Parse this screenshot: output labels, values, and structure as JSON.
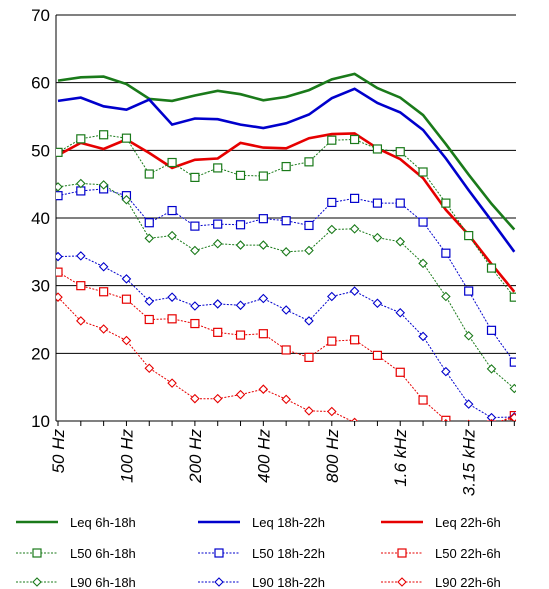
{
  "chart_data": {
    "type": "line",
    "title": "",
    "xlabel": "",
    "ylabel": "",
    "ylim": [
      10,
      70
    ],
    "yticks": [
      10,
      20,
      30,
      40,
      50,
      60,
      70
    ],
    "grid": "horizontal",
    "legend_position": "bottom",
    "x_tick_labels": [
      {
        "i": 0,
        "label": "50 Hz"
      },
      {
        "i": 3,
        "label": "100 Hz"
      },
      {
        "i": 6,
        "label": "200 Hz"
      },
      {
        "i": 9,
        "label": "400 Hz"
      },
      {
        "i": 12,
        "label": "800 Hz"
      },
      {
        "i": 15,
        "label": "1.6 kHz"
      },
      {
        "i": 18,
        "label": "3.15 kHz"
      }
    ],
    "x_count": 21,
    "series": [
      {
        "name": "Leq 6h-18h",
        "color": "#1a7a1a",
        "style": "solid",
        "marker": "none",
        "values": [
          60.3,
          60.8,
          60.9,
          59.8,
          57.6,
          57.3,
          58.1,
          58.8,
          58.3,
          57.4,
          57.9,
          58.9,
          60.5,
          61.3,
          59.2,
          57.8,
          55.2,
          50.9,
          46.4,
          42.1,
          38.3
        ]
      },
      {
        "name": "Leq 18h-22h",
        "color": "#0000cc",
        "style": "solid",
        "marker": "none",
        "values": [
          57.3,
          57.8,
          56.5,
          56.0,
          57.5,
          53.8,
          54.7,
          54.6,
          53.8,
          53.3,
          54.0,
          55.3,
          57.7,
          59.1,
          57.0,
          55.6,
          53.0,
          48.8,
          44.1,
          39.6,
          35.0
        ]
      },
      {
        "name": "Leq 22h-6h",
        "color": "#e60000",
        "style": "solid",
        "marker": "none",
        "values": [
          49.3,
          51.1,
          50.2,
          51.6,
          49.6,
          47.4,
          48.6,
          48.8,
          51.1,
          50.4,
          50.3,
          51.8,
          52.4,
          52.5,
          50.3,
          48.7,
          45.9,
          41.2,
          37.5,
          33.2,
          29.1
        ]
      },
      {
        "name": "L50 6h-18h",
        "color": "#1a7a1a",
        "style": "dotted",
        "marker": "square",
        "values": [
          49.7,
          51.7,
          52.3,
          51.8,
          46.5,
          48.2,
          46.0,
          47.4,
          46.3,
          46.2,
          47.6,
          48.3,
          51.5,
          51.6,
          50.2,
          49.8,
          46.8,
          42.2,
          37.4,
          32.6,
          28.3
        ]
      },
      {
        "name": "L50 18h-22h",
        "color": "#0000cc",
        "style": "dotted",
        "marker": "square",
        "values": [
          43.3,
          44.0,
          44.3,
          43.3,
          39.3,
          41.1,
          38.8,
          39.1,
          39.0,
          39.9,
          39.6,
          38.9,
          42.3,
          42.9,
          42.2,
          42.2,
          39.4,
          34.8,
          29.2,
          23.4,
          18.7
        ]
      },
      {
        "name": "L50 22h-6h",
        "color": "#e60000",
        "style": "dotted",
        "marker": "square",
        "values": [
          32.0,
          30.0,
          29.1,
          28.0,
          25.0,
          25.1,
          24.4,
          23.1,
          22.7,
          22.9,
          20.5,
          19.4,
          21.8,
          22.0,
          19.7,
          17.2,
          13.1,
          10.1,
          9.0,
          9.4,
          10.8
        ]
      },
      {
        "name": "L90 6h-18h",
        "color": "#1a7a1a",
        "style": "dotted",
        "marker": "diamond",
        "values": [
          44.6,
          45.1,
          44.9,
          42.7,
          37.0,
          37.4,
          35.2,
          36.2,
          36.0,
          36.0,
          35.0,
          35.2,
          38.3,
          38.4,
          37.1,
          36.5,
          33.3,
          28.4,
          22.6,
          17.7,
          14.8
        ]
      },
      {
        "name": "L90 18h-22h",
        "color": "#0000cc",
        "style": "dotted",
        "marker": "diamond",
        "values": [
          34.3,
          34.4,
          32.8,
          31.0,
          27.7,
          28.3,
          27.0,
          27.3,
          27.1,
          28.1,
          26.4,
          24.8,
          28.4,
          29.2,
          27.4,
          26.0,
          22.5,
          17.3,
          12.5,
          10.5,
          10.6
        ]
      },
      {
        "name": "L90 22h-6h",
        "color": "#e60000",
        "style": "dotted",
        "marker": "diamond",
        "values": [
          28.3,
          24.8,
          23.6,
          21.9,
          17.8,
          15.6,
          13.3,
          13.3,
          13.9,
          14.7,
          13.2,
          11.5,
          11.4,
          9.8,
          9.0,
          8.6,
          8.8,
          9.6,
          9.5,
          9.6,
          10.5
        ]
      }
    ]
  }
}
